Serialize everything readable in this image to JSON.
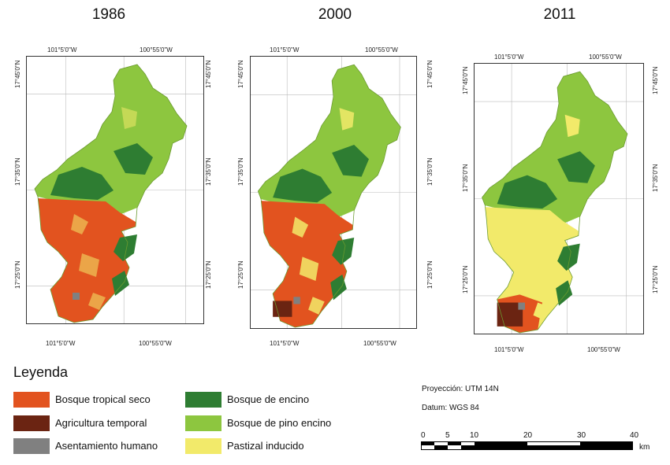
{
  "maps": [
    {
      "year": "1986",
      "coords": {
        "top_left": "101°5'0\"W",
        "top_right": "100°55'0\"W",
        "bottom_left": "101°5'0\"W",
        "bottom_right": "100°55'0\"W",
        "left_top": "17°45'0\"N",
        "left_mid": "17°35'0\"N",
        "left_bot": "17°25'0\"N",
        "right_top": "17°45'0\"N",
        "right_mid": "17°35'0\"N",
        "right_bot": "17°25'0\"N"
      }
    },
    {
      "year": "2000",
      "coords": {
        "top_left": "101°5'0\"W",
        "top_right": "100°55'0\"W",
        "bottom_left": "101°5'0\"W",
        "bottom_right": "100°55'0\"W",
        "left_top": "17°45'0\"N",
        "left_mid": "17°35'0\"N",
        "left_bot": "17°25'0\"N",
        "right_top": "17°45'0\"N",
        "right_mid": "17°35'0\"N",
        "right_bot": "17°25'0\"N"
      }
    },
    {
      "year": "2011",
      "coords": {
        "top_left": "101°5'0\"W",
        "top_right": "100°55'0\"W",
        "bottom_left": "101°5'0\"W",
        "bottom_right": "100°55'0\"W",
        "left_top": "17°45'0\"N",
        "left_mid": "17°35'0\"N",
        "left_bot": "17°25'0\"N",
        "right_top": "17°45'0\"N",
        "right_mid": "17°35'0\"N",
        "right_bot": "17°25'0\"N"
      }
    }
  ],
  "legend": {
    "title": "Leyenda",
    "items": [
      {
        "label": "Bosque tropical seco",
        "color": "#e2531f"
      },
      {
        "label": "Agricultura temporal",
        "color": "#6b2412"
      },
      {
        "label": "Asentamiento humano",
        "color": "#808080"
      },
      {
        "label": "Bosque de encino",
        "color": "#2e7d32"
      },
      {
        "label": "Bosque de pino encino",
        "color": "#8dc63f"
      },
      {
        "label": "Pastizal inducido",
        "color": "#f2ea6a"
      }
    ]
  },
  "projection": "Proyección: UTM 14N",
  "datum": "Datum: WGS 84",
  "scale": {
    "labels": [
      "0",
      "5",
      "10",
      "20",
      "30",
      "40"
    ],
    "unit": "km"
  }
}
